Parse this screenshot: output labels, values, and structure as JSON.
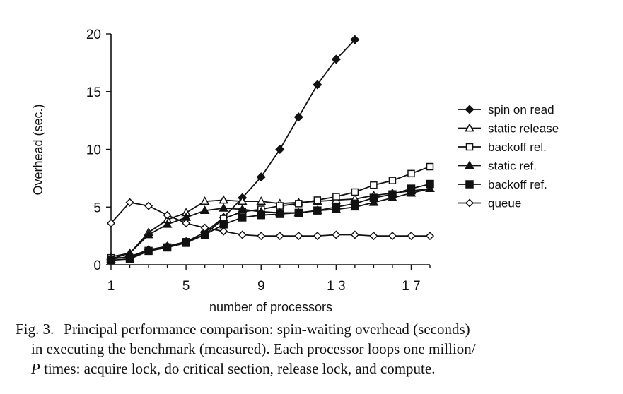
{
  "chart_data": {
    "type": "line",
    "xlabel": "number of processors",
    "ylabel": "Overhead (sec.)",
    "xlim": [
      1,
      18
    ],
    "ylim": [
      0,
      20
    ],
    "xticks": [
      1,
      5,
      9,
      13,
      17
    ],
    "xtick_labels": [
      "1",
      "5",
      "9",
      "1 3",
      "1 7"
    ],
    "yticks": [
      0,
      5,
      10,
      15,
      20
    ],
    "ytick_labels": [
      "0",
      "5",
      "10",
      "15",
      "20"
    ],
    "grid": false,
    "legend_position": "right",
    "series": [
      {
        "name": "spin on read",
        "marker": "diamond-filled",
        "x": [
          1,
          2,
          3,
          4,
          5,
          6,
          7,
          8,
          9,
          10,
          11,
          12,
          13,
          14
        ],
        "y": [
          0.5,
          0.7,
          1.3,
          1.6,
          2.0,
          2.8,
          4.1,
          5.8,
          7.6,
          10.0,
          12.8,
          15.6,
          17.8,
          19.5
        ]
      },
      {
        "name": "static release",
        "marker": "triangle-open",
        "x": [
          1,
          2,
          3,
          4,
          5,
          6,
          7,
          8,
          9,
          10,
          11,
          12,
          13,
          14,
          15,
          16,
          17,
          18
        ],
        "y": [
          0.7,
          1.0,
          2.8,
          3.9,
          4.5,
          5.5,
          5.6,
          5.5,
          5.5,
          5.3,
          5.4,
          5.5,
          5.6,
          5.7,
          6.0,
          6.2,
          6.4,
          6.6
        ]
      },
      {
        "name": "backoff rel.",
        "marker": "square-open",
        "x": [
          1,
          2,
          3,
          4,
          5,
          6,
          7,
          8,
          9,
          10,
          11,
          12,
          13,
          14,
          15,
          16,
          17,
          18
        ],
        "y": [
          0.6,
          0.6,
          1.2,
          1.5,
          2.0,
          2.6,
          4.0,
          4.6,
          4.8,
          5.1,
          5.3,
          5.6,
          5.9,
          6.3,
          6.9,
          7.3,
          7.9,
          8.5
        ]
      },
      {
        "name": "static ref.",
        "marker": "triangle-filled",
        "x": [
          1,
          2,
          3,
          4,
          5,
          6,
          7,
          8,
          9,
          10,
          11,
          12,
          13,
          14,
          15,
          16,
          17,
          18
        ],
        "y": [
          0.5,
          1.0,
          2.6,
          3.5,
          4.1,
          4.7,
          4.9,
          4.8,
          4.6,
          4.5,
          4.5,
          4.7,
          4.8,
          5.0,
          5.4,
          5.8,
          6.2,
          6.6
        ]
      },
      {
        "name": "backoff ref.",
        "marker": "square-filled",
        "x": [
          1,
          2,
          3,
          4,
          5,
          6,
          7,
          8,
          9,
          10,
          11,
          12,
          13,
          14,
          15,
          16,
          17,
          18
        ],
        "y": [
          0.4,
          0.5,
          1.2,
          1.5,
          1.9,
          2.6,
          3.5,
          4.1,
          4.3,
          4.4,
          4.5,
          4.7,
          5.0,
          5.3,
          5.8,
          6.1,
          6.6,
          7.0
        ]
      },
      {
        "name": "queue",
        "marker": "diamond-open",
        "x": [
          1,
          2,
          3,
          4,
          5,
          6,
          7,
          8,
          9,
          10,
          11,
          12,
          13,
          14,
          15,
          16,
          17,
          18
        ],
        "y": [
          3.6,
          5.4,
          5.1,
          4.3,
          3.6,
          3.2,
          2.9,
          2.6,
          2.5,
          2.5,
          2.5,
          2.5,
          2.6,
          2.6,
          2.5,
          2.5,
          2.5,
          2.5
        ]
      }
    ]
  },
  "caption": {
    "figure_number": "Fig. 3.",
    "line1": "Principal performance comparison: spin-waiting overhead (seconds)",
    "line2": "in executing the benchmark (measured). Each processor loops one million/",
    "line3_italic": "P",
    "line3": " times: acquire lock, do critical section, release lock, and compute."
  }
}
